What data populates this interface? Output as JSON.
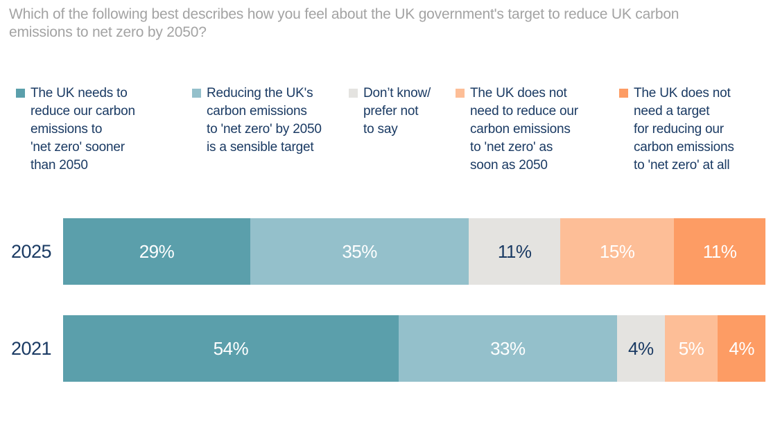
{
  "title": "Which of the following best describes how you feel about the UK government's target to reduce UK carbon\nemissions to net zero by 2050?",
  "colors": {
    "title_text": "#A3A3A3",
    "body_text": "#1A3A63",
    "background": "#FFFFFF",
    "series_teal": "#5B9FAB",
    "series_light_blue": "#94C0CB",
    "series_gray": "#E4E3E0",
    "series_peach": "#FDBE97",
    "series_orange": "#FD9C64"
  },
  "legend": {
    "items": [
      {
        "label": "The UK needs to\nreduce our carbon\nemissions to\n'net zero' sooner\nthan 2050",
        "color": "#5B9FAB"
      },
      {
        "label": "Reducing the UK's\ncarbon emissions\nto 'net zero' by 2050\nis a sensible target",
        "color": "#94C0CB"
      },
      {
        "label": "Don’t know/\nprefer not\nto say",
        "color": "#E4E3E0"
      },
      {
        "label": "The UK does not\nneed to reduce our\ncarbon emissions\nto 'net zero' as\nsoon as 2050",
        "color": "#FDBE97"
      },
      {
        "label": "The UK does not\nneed a target\nfor reducing our\ncarbon emissions\nto 'net zero' at all",
        "color": "#FD9C64"
      }
    ]
  },
  "chart_data": {
    "type": "bar",
    "orientation": "horizontal-stacked",
    "title": "Which of the following best describes how you feel about the UK government's target to reduce UK carbon emissions to net zero by 2050?",
    "categories": [
      "2025",
      "2021"
    ],
    "series": [
      {
        "name": "The UK needs to reduce our carbon emissions to 'net zero' sooner than 2050",
        "color": "#5B9FAB",
        "label_color": "#FFFFFF",
        "values": [
          29,
          54
        ]
      },
      {
        "name": "Reducing the UK's carbon emissions to 'net zero' by 2050 is a sensible target",
        "color": "#94C0CB",
        "label_color": "#FFFFFF",
        "values": [
          35,
          33
        ]
      },
      {
        "name": "Don’t know/ prefer not to say",
        "color": "#E4E3E0",
        "label_color": "#1A3A63",
        "values": [
          11,
          4
        ]
      },
      {
        "name": "The UK does not need to reduce our carbon emissions to 'net zero' as soon as 2050",
        "color": "#FDBE97",
        "label_color": "#FFFFFF",
        "values": [
          15,
          5
        ]
      },
      {
        "name": "The UK does not need a target for reducing our carbon emissions to 'net zero' at all",
        "color": "#FD9C64",
        "label_color": "#FFFFFF",
        "values": [
          11,
          4
        ]
      }
    ],
    "value_suffix": "%",
    "xlabel": "",
    "ylabel": "",
    "legend_position": "top",
    "grid": false
  }
}
